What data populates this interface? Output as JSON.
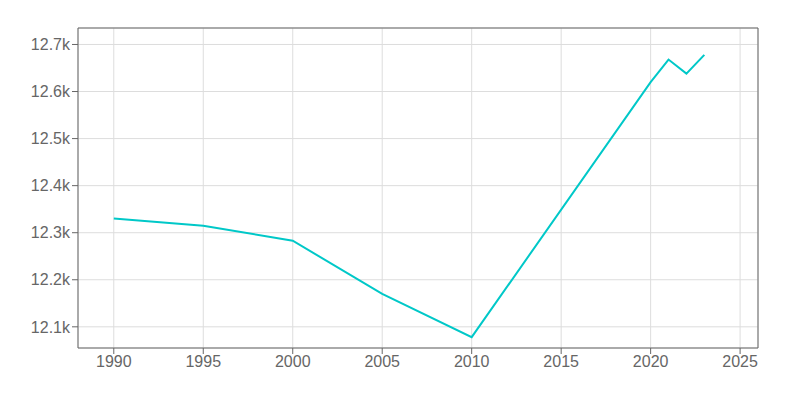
{
  "chart_data": {
    "type": "line",
    "x": [
      1990,
      1995,
      2000,
      2005,
      2010,
      2020,
      2021,
      2022,
      2023
    ],
    "values": [
      12330,
      12315,
      12283,
      12170,
      12078,
      12620,
      12668,
      12638,
      12678
    ],
    "color": "#00c8c8",
    "xlim": [
      1988,
      2026
    ],
    "ylim": [
      12055,
      12735
    ],
    "xticks": [
      1990,
      1995,
      2000,
      2005,
      2010,
      2015,
      2020,
      2025
    ],
    "yticks": [
      {
        "value": 12100,
        "label": "12.1k"
      },
      {
        "value": 12200,
        "label": "12.2k"
      },
      {
        "value": 12300,
        "label": "12.3k"
      },
      {
        "value": 12400,
        "label": "12.4k"
      },
      {
        "value": 12500,
        "label": "12.5k"
      },
      {
        "value": 12600,
        "label": "12.6k"
      },
      {
        "value": 12700,
        "label": "12.7k"
      }
    ],
    "grid": true
  }
}
